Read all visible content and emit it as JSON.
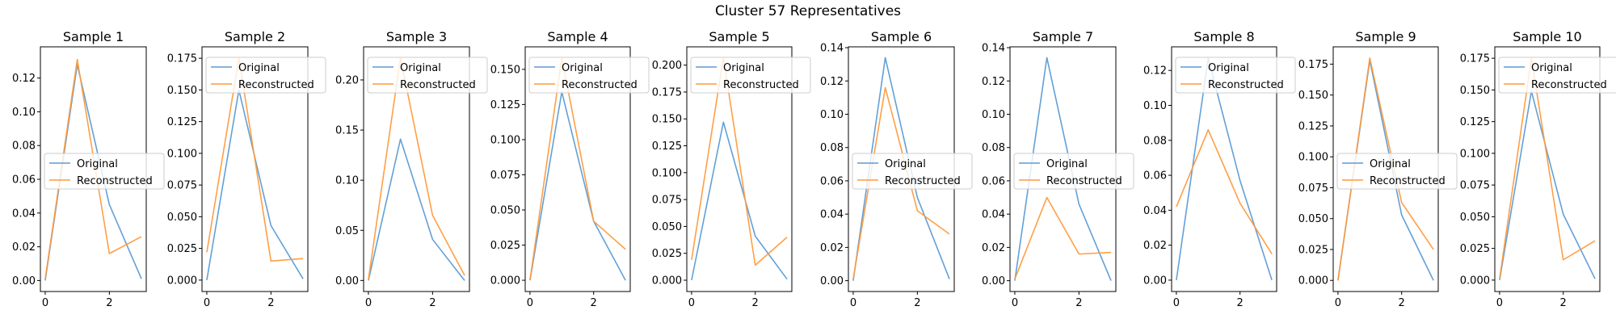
{
  "figure": {
    "title": "Cluster 57 Representatives"
  },
  "series_names": [
    "Original",
    "Reconstructed"
  ],
  "colors": {
    "Original": "#5b9bd5",
    "Reconstructed": "#ff9a3c"
  },
  "chart_data": [
    {
      "type": "line",
      "title": "Sample 1",
      "x": [
        0,
        1,
        2,
        3
      ],
      "xlim": [
        -0.15,
        3.15
      ],
      "ylim": [
        -0.0065,
        0.1385
      ],
      "series": [
        {
          "name": "Original",
          "values": [
            0.0,
            0.128,
            0.045,
            0.001
          ]
        },
        {
          "name": "Reconstructed",
          "values": [
            0.001,
            0.131,
            0.016,
            0.026
          ]
        }
      ],
      "yticks": [
        "0.00",
        "0.02",
        "0.04",
        "0.06",
        "0.08",
        "0.10",
        "0.12"
      ],
      "ytick_values": [
        0,
        0.02,
        0.04,
        0.06,
        0.08,
        0.1,
        0.12
      ],
      "xticks": [
        "0",
        "2"
      ],
      "xtick_values": [
        0,
        2
      ],
      "legend_position": "center-left"
    },
    {
      "type": "line",
      "title": "Sample 2",
      "x": [
        0,
        1,
        2,
        3
      ],
      "xlim": [
        -0.15,
        3.15
      ],
      "ylim": [
        -0.009,
        0.184
      ],
      "series": [
        {
          "name": "Original",
          "values": [
            0.0,
            0.15,
            0.043,
            0.001
          ]
        },
        {
          "name": "Reconstructed",
          "values": [
            0.022,
            0.175,
            0.015,
            0.017
          ]
        }
      ],
      "yticks": [
        "0.000",
        "0.025",
        "0.050",
        "0.075",
        "0.100",
        "0.125",
        "0.150",
        "0.175"
      ],
      "ytick_values": [
        0,
        0.025,
        0.05,
        0.075,
        0.1,
        0.125,
        0.15,
        0.175
      ],
      "xticks": [
        "0",
        "2"
      ],
      "xtick_values": [
        0,
        2
      ],
      "legend_position": "upper-left"
    },
    {
      "type": "line",
      "title": "Sample 3",
      "x": [
        0,
        1,
        2,
        3
      ],
      "xlim": [
        -0.15,
        3.15
      ],
      "ylim": [
        -0.011,
        0.233
      ],
      "series": [
        {
          "name": "Original",
          "values": [
            0.0,
            0.141,
            0.041,
            0.0
          ]
        },
        {
          "name": "Reconstructed",
          "values": [
            0.001,
            0.222,
            0.065,
            0.005
          ]
        }
      ],
      "yticks": [
        "0.00",
        "0.05",
        "0.10",
        "0.15",
        "0.20"
      ],
      "ytick_values": [
        0,
        0.05,
        0.1,
        0.15,
        0.2
      ],
      "xticks": [
        "0",
        "2"
      ],
      "xtick_values": [
        0,
        2
      ],
      "legend_position": "upper-left"
    },
    {
      "type": "line",
      "title": "Sample 4",
      "x": [
        0,
        1,
        2,
        3
      ],
      "xlim": [
        -0.15,
        3.15
      ],
      "ylim": [
        -0.008,
        0.166
      ],
      "series": [
        {
          "name": "Original",
          "values": [
            0.0,
            0.134,
            0.042,
            0.0
          ]
        },
        {
          "name": "Reconstructed",
          "values": [
            0.0,
            0.158,
            0.042,
            0.022
          ]
        }
      ],
      "yticks": [
        "0.000",
        "0.025",
        "0.050",
        "0.075",
        "0.100",
        "0.125",
        "0.150"
      ],
      "ytick_values": [
        0,
        0.025,
        0.05,
        0.075,
        0.1,
        0.125,
        0.15
      ],
      "xticks": [
        "0",
        "2"
      ],
      "xtick_values": [
        0,
        2
      ],
      "legend_position": "upper-left"
    },
    {
      "type": "line",
      "title": "Sample 5",
      "x": [
        0,
        1,
        2,
        3
      ],
      "xlim": [
        -0.15,
        3.15
      ],
      "ylim": [
        -0.0105,
        0.217
      ],
      "series": [
        {
          "name": "Original",
          "values": [
            0.0,
            0.147,
            0.041,
            0.001
          ]
        },
        {
          "name": "Reconstructed",
          "values": [
            0.019,
            0.207,
            0.014,
            0.04
          ]
        }
      ],
      "yticks": [
        "0.000",
        "0.025",
        "0.050",
        "0.075",
        "0.100",
        "0.125",
        "0.150",
        "0.175",
        "0.200"
      ],
      "ytick_values": [
        0,
        0.025,
        0.05,
        0.075,
        0.1,
        0.125,
        0.15,
        0.175,
        0.2
      ],
      "xticks": [
        "0",
        "2"
      ],
      "xtick_values": [
        0,
        2
      ],
      "legend_position": "upper-left"
    },
    {
      "type": "line",
      "title": "Sample 6",
      "x": [
        0,
        1,
        2,
        3
      ],
      "xlim": [
        -0.15,
        3.15
      ],
      "ylim": [
        -0.0065,
        0.1405
      ],
      "series": [
        {
          "name": "Original",
          "values": [
            0.0,
            0.134,
            0.05,
            0.001
          ]
        },
        {
          "name": "Reconstructed",
          "values": [
            0.001,
            0.116,
            0.042,
            0.028
          ]
        }
      ],
      "yticks": [
        "0.00",
        "0.02",
        "0.04",
        "0.06",
        "0.08",
        "0.10",
        "0.12",
        "0.14"
      ],
      "ytick_values": [
        0,
        0.02,
        0.04,
        0.06,
        0.08,
        0.1,
        0.12,
        0.14
      ],
      "xticks": [
        "0",
        "2"
      ],
      "xtick_values": [
        0,
        2
      ],
      "legend_position": "center-left"
    },
    {
      "type": "line",
      "title": "Sample 7",
      "x": [
        0,
        1,
        2,
        3
      ],
      "xlim": [
        -0.15,
        3.15
      ],
      "ylim": [
        -0.0065,
        0.1405
      ],
      "series": [
        {
          "name": "Original",
          "values": [
            0.0,
            0.134,
            0.046,
            0.0
          ]
        },
        {
          "name": "Reconstructed",
          "values": [
            0.001,
            0.05,
            0.016,
            0.017
          ]
        }
      ],
      "yticks": [
        "0.00",
        "0.02",
        "0.04",
        "0.06",
        "0.08",
        "0.10",
        "0.12",
        "0.14"
      ],
      "ytick_values": [
        0,
        0.02,
        0.04,
        0.06,
        0.08,
        0.1,
        0.12,
        0.14
      ],
      "xticks": [
        "0",
        "2"
      ],
      "xtick_values": [
        0,
        2
      ],
      "legend_position": "center-left"
    },
    {
      "type": "line",
      "title": "Sample 8",
      "x": [
        0,
        1,
        2,
        3
      ],
      "xlim": [
        -0.15,
        3.15
      ],
      "ylim": [
        -0.0065,
        0.1335
      ],
      "series": [
        {
          "name": "Original",
          "values": [
            0.0,
            0.127,
            0.057,
            0.0
          ]
        },
        {
          "name": "Reconstructed",
          "values": [
            0.042,
            0.086,
            0.044,
            0.015
          ]
        }
      ],
      "yticks": [
        "0.00",
        "0.02",
        "0.04",
        "0.06",
        "0.08",
        "0.10",
        "0.12"
      ],
      "ytick_values": [
        0,
        0.02,
        0.04,
        0.06,
        0.08,
        0.1,
        0.12
      ],
      "xticks": [
        "0",
        "2"
      ],
      "xtick_values": [
        0,
        2
      ],
      "legend_position": "upper-left"
    },
    {
      "type": "line",
      "title": "Sample 9",
      "x": [
        0,
        1,
        2,
        3
      ],
      "xlim": [
        -0.15,
        3.15
      ],
      "ylim": [
        -0.009,
        0.189
      ],
      "series": [
        {
          "name": "Original",
          "values": [
            0.0,
            0.178,
            0.053,
            0.0
          ]
        },
        {
          "name": "Reconstructed",
          "values": [
            0.0,
            0.18,
            0.063,
            0.025
          ]
        }
      ],
      "yticks": [
        "0.000",
        "0.025",
        "0.050",
        "0.075",
        "0.100",
        "0.125",
        "0.150",
        "0.175"
      ],
      "ytick_values": [
        0,
        0.025,
        0.05,
        0.075,
        0.1,
        0.125,
        0.15,
        0.175
      ],
      "xticks": [
        "0",
        "2"
      ],
      "xtick_values": [
        0,
        2
      ],
      "legend_position": "center-left"
    },
    {
      "type": "line",
      "title": "Sample 10",
      "x": [
        0,
        1,
        2,
        3
      ],
      "xlim": [
        -0.15,
        3.15
      ],
      "ylim": [
        -0.009,
        0.184
      ],
      "series": [
        {
          "name": "Original",
          "values": [
            0.0,
            0.149,
            0.052,
            0.001
          ]
        },
        {
          "name": "Reconstructed",
          "values": [
            0.001,
            0.175,
            0.016,
            0.031
          ]
        }
      ],
      "yticks": [
        "0.000",
        "0.025",
        "0.050",
        "0.075",
        "0.100",
        "0.125",
        "0.150",
        "0.175"
      ],
      "ytick_values": [
        0,
        0.025,
        0.05,
        0.075,
        0.1,
        0.125,
        0.15,
        0.175
      ],
      "xticks": [
        "0",
        "2"
      ],
      "xtick_values": [
        0,
        2
      ],
      "legend_position": "upper-left"
    }
  ]
}
